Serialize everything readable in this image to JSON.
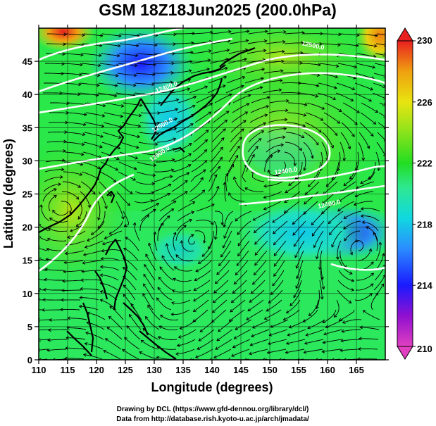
{
  "title": "GSM 18Z18Jun2025 (200.0hPa)",
  "x_axis": {
    "label": "Longitude (degrees)",
    "range": [
      110,
      170
    ],
    "ticks": [
      "110",
      "115",
      "120",
      "125",
      "130",
      "135",
      "140",
      "145",
      "150",
      "155",
      "160",
      "165"
    ],
    "tick_values": [
      110,
      115,
      120,
      125,
      130,
      135,
      140,
      145,
      150,
      155,
      160,
      165
    ]
  },
  "y_axis": {
    "label": "Latitude  (degrees)",
    "range": [
      0,
      50
    ],
    "ticks": [
      "0",
      "5",
      "10",
      "15",
      "20",
      "25",
      "30",
      "35",
      "40",
      "45"
    ],
    "tick_values": [
      0,
      5,
      10,
      15,
      20,
      25,
      30,
      35,
      40,
      45
    ]
  },
  "colorbar": {
    "range": [
      210,
      230
    ],
    "labels": [
      "210",
      "214",
      "218",
      "222",
      "226",
      "230"
    ],
    "label_values": [
      210,
      214,
      218,
      222,
      226,
      230
    ],
    "colors": [
      "#e040c0",
      "#9010d0",
      "#1a1aff",
      "#2b8cff",
      "#10d8e0",
      "#2ee890",
      "#22dd22",
      "#9ee41a",
      "#e8e410",
      "#f0a010",
      "#e82020"
    ]
  },
  "contour_labels": [
    "12500.0",
    "12400.0",
    "12500.0",
    "12500.0",
    "12400.0",
    "12400.0"
  ],
  "credits": {
    "line1": "Drawing by DCL (https://www.gfd-dennou.org/library/dcl/)",
    "line2": "Data from http://database.rish.kyoto-u.ac.jp/arch/jmadata/"
  }
}
